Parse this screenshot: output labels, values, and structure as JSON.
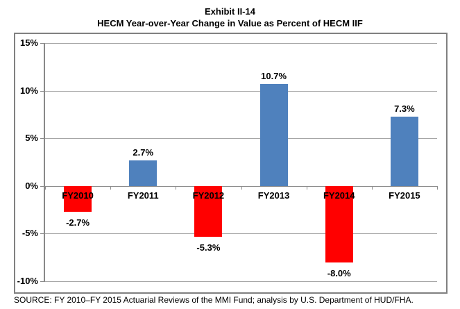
{
  "header": {
    "title": "Exhibit II-14",
    "subtitle": "HECM Year-over-Year Change in Value as Percent of HECM IIF"
  },
  "footer": {
    "source": "SOURCE: FY 2010–FY 2015 Actuarial Reviews of the MMI Fund; analysis by U.S. Department of HUD/FHA."
  },
  "colors": {
    "positive_bar": "#4f81bd",
    "negative_bar": "#ff0000"
  },
  "chart_data": {
    "type": "bar",
    "title": "HECM Year-over-Year Change in Value as Percent of HECM IIF",
    "categories": [
      "FY2010",
      "FY2011",
      "FY2012",
      "FY2013",
      "FY2014",
      "FY2015"
    ],
    "values": [
      -2.7,
      2.7,
      -5.3,
      10.7,
      -8.0,
      7.3
    ],
    "data_labels": [
      "-2.7%",
      "2.7%",
      "-5.3%",
      "10.7%",
      "-8.0%",
      "7.3%"
    ],
    "y_ticks": [
      15,
      10,
      5,
      0,
      -5,
      -10
    ],
    "y_tick_labels": [
      "15%",
      "10%",
      "5%",
      "0%",
      "-5%",
      "-10%"
    ],
    "ylim": [
      -10,
      15
    ],
    "grid": true,
    "legend_position": "none",
    "xlabel": "",
    "ylabel": ""
  }
}
